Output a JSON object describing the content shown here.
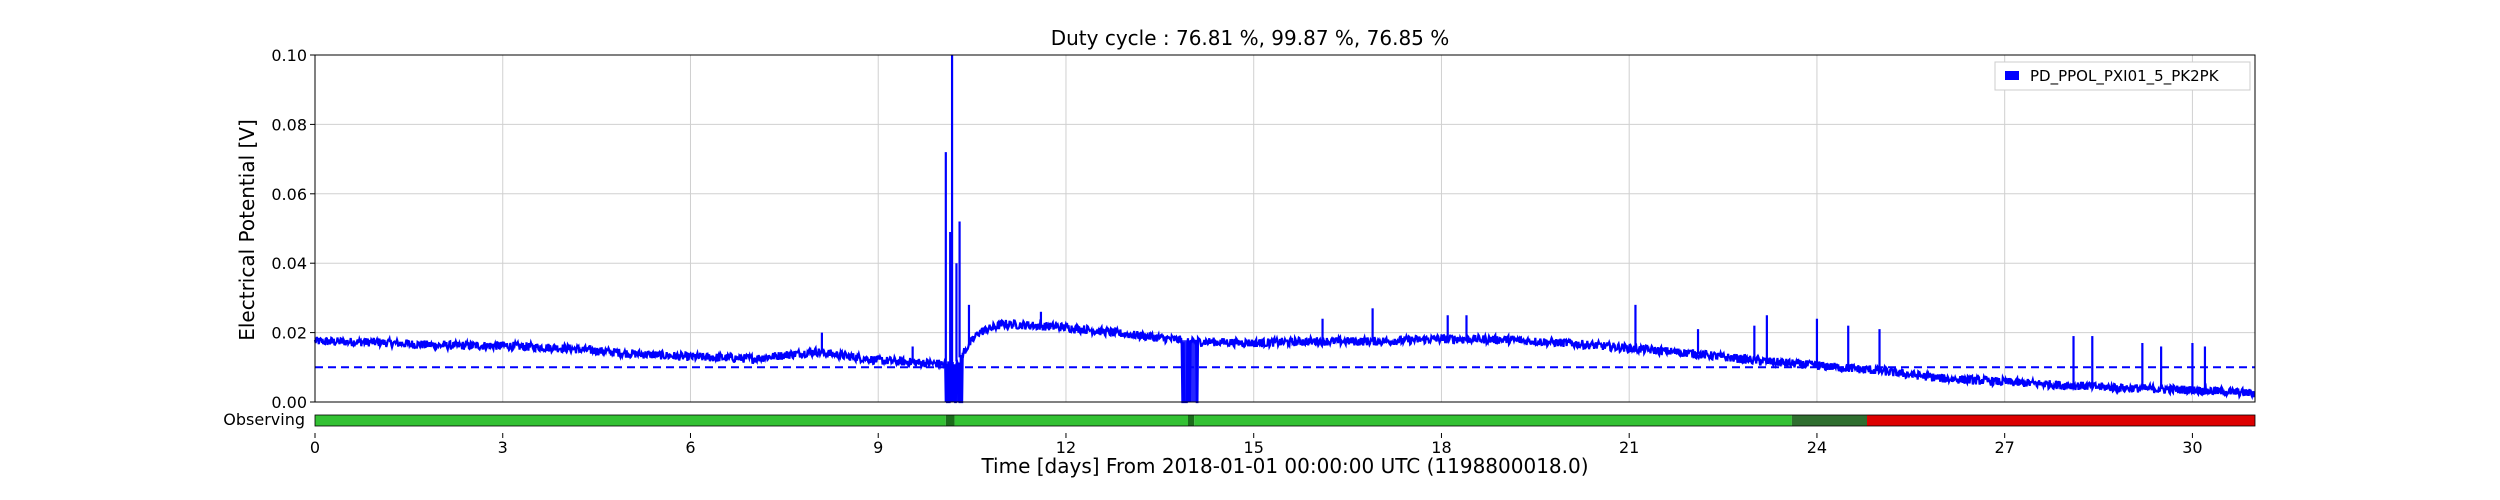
{
  "chart_data": {
    "type": "line",
    "title": "Duty cycle : 76.81 %, 99.87 %, 76.85 %",
    "xlabel": "Time [days] From 2018-01-01 00:00:00 UTC (1198800018.0)",
    "ylabel": "Electrical Potential [V]",
    "xlim": [
      0,
      31
    ],
    "ylim": [
      0,
      0.1
    ],
    "x_ticks": [
      0,
      3,
      6,
      9,
      12,
      15,
      18,
      21,
      24,
      27,
      30
    ],
    "y_ticks": [
      "0.00",
      "0.02",
      "0.04",
      "0.06",
      "0.08",
      "0.10"
    ],
    "grid": true,
    "legend_position": "top-right",
    "threshold": 0.01,
    "series": [
      {
        "name": "PD_PPOL_PXI01_5_PK2PK",
        "color": "#0000ff",
        "baseline": [
          [
            0,
            0.0175
          ],
          [
            1,
            0.0172
          ],
          [
            2,
            0.0163
          ],
          [
            3,
            0.0162
          ],
          [
            4,
            0.0155
          ],
          [
            5,
            0.014
          ],
          [
            6,
            0.013
          ],
          [
            7,
            0.0125
          ],
          [
            8,
            0.0145
          ],
          [
            9,
            0.012
          ],
          [
            10,
            0.011
          ],
          [
            10.2,
            0.0105
          ],
          [
            10.6,
            0.02
          ],
          [
            11,
            0.0225
          ],
          [
            12,
            0.0215
          ],
          [
            13,
            0.0195
          ],
          [
            14,
            0.0175
          ],
          [
            15,
            0.017
          ],
          [
            16,
            0.0175
          ],
          [
            17,
            0.0175
          ],
          [
            18,
            0.0182
          ],
          [
            19,
            0.018
          ],
          [
            20,
            0.017
          ],
          [
            21,
            0.0155
          ],
          [
            22,
            0.014
          ],
          [
            23,
            0.012
          ],
          [
            24,
            0.0105
          ],
          [
            25,
            0.009
          ],
          [
            26,
            0.0068
          ],
          [
            27,
            0.0058
          ],
          [
            28,
            0.0048
          ],
          [
            29,
            0.004
          ],
          [
            30,
            0.0035
          ],
          [
            31,
            0.0025
          ]
        ],
        "spikes": [
          [
            8.1,
            0.02
          ],
          [
            9.55,
            0.016
          ],
          [
            10.08,
            0.072
          ],
          [
            10.15,
            0.049
          ],
          [
            10.18,
            0.1
          ],
          [
            10.25,
            0.04
          ],
          [
            10.3,
            0.052
          ],
          [
            10.45,
            0.028
          ],
          [
            11.6,
            0.026
          ],
          [
            13.8,
            0.018
          ],
          [
            16.1,
            0.024
          ],
          [
            16.9,
            0.027
          ],
          [
            18.1,
            0.025
          ],
          [
            18.4,
            0.025
          ],
          [
            21.1,
            0.028
          ],
          [
            22.1,
            0.021
          ],
          [
            23.0,
            0.022
          ],
          [
            23.2,
            0.025
          ],
          [
            24.0,
            0.024
          ],
          [
            24.5,
            0.022
          ],
          [
            25.0,
            0.021
          ],
          [
            28.1,
            0.019
          ],
          [
            28.4,
            0.019
          ],
          [
            29.2,
            0.017
          ],
          [
            29.5,
            0.016
          ],
          [
            30.0,
            0.017
          ],
          [
            30.2,
            0.016
          ]
        ],
        "dropouts": [
          [
            10.08,
            10.35
          ],
          [
            13.85,
            14.1
          ]
        ]
      }
    ],
    "segments_label": "Observing",
    "segments": [
      {
        "from": 0,
        "to": 10.08,
        "color": "#33c133"
      },
      {
        "from": 10.08,
        "to": 10.22,
        "color": "#1a6b1a"
      },
      {
        "from": 10.22,
        "to": 13.95,
        "color": "#33c133"
      },
      {
        "from": 13.95,
        "to": 14.05,
        "color": "#1a6b1a"
      },
      {
        "from": 14.05,
        "to": 23.6,
        "color": "#33c133"
      },
      {
        "from": 23.6,
        "to": 24.8,
        "color": "#2f6e2f"
      },
      {
        "from": 24.8,
        "to": 31,
        "color": "#dd0000"
      }
    ]
  }
}
